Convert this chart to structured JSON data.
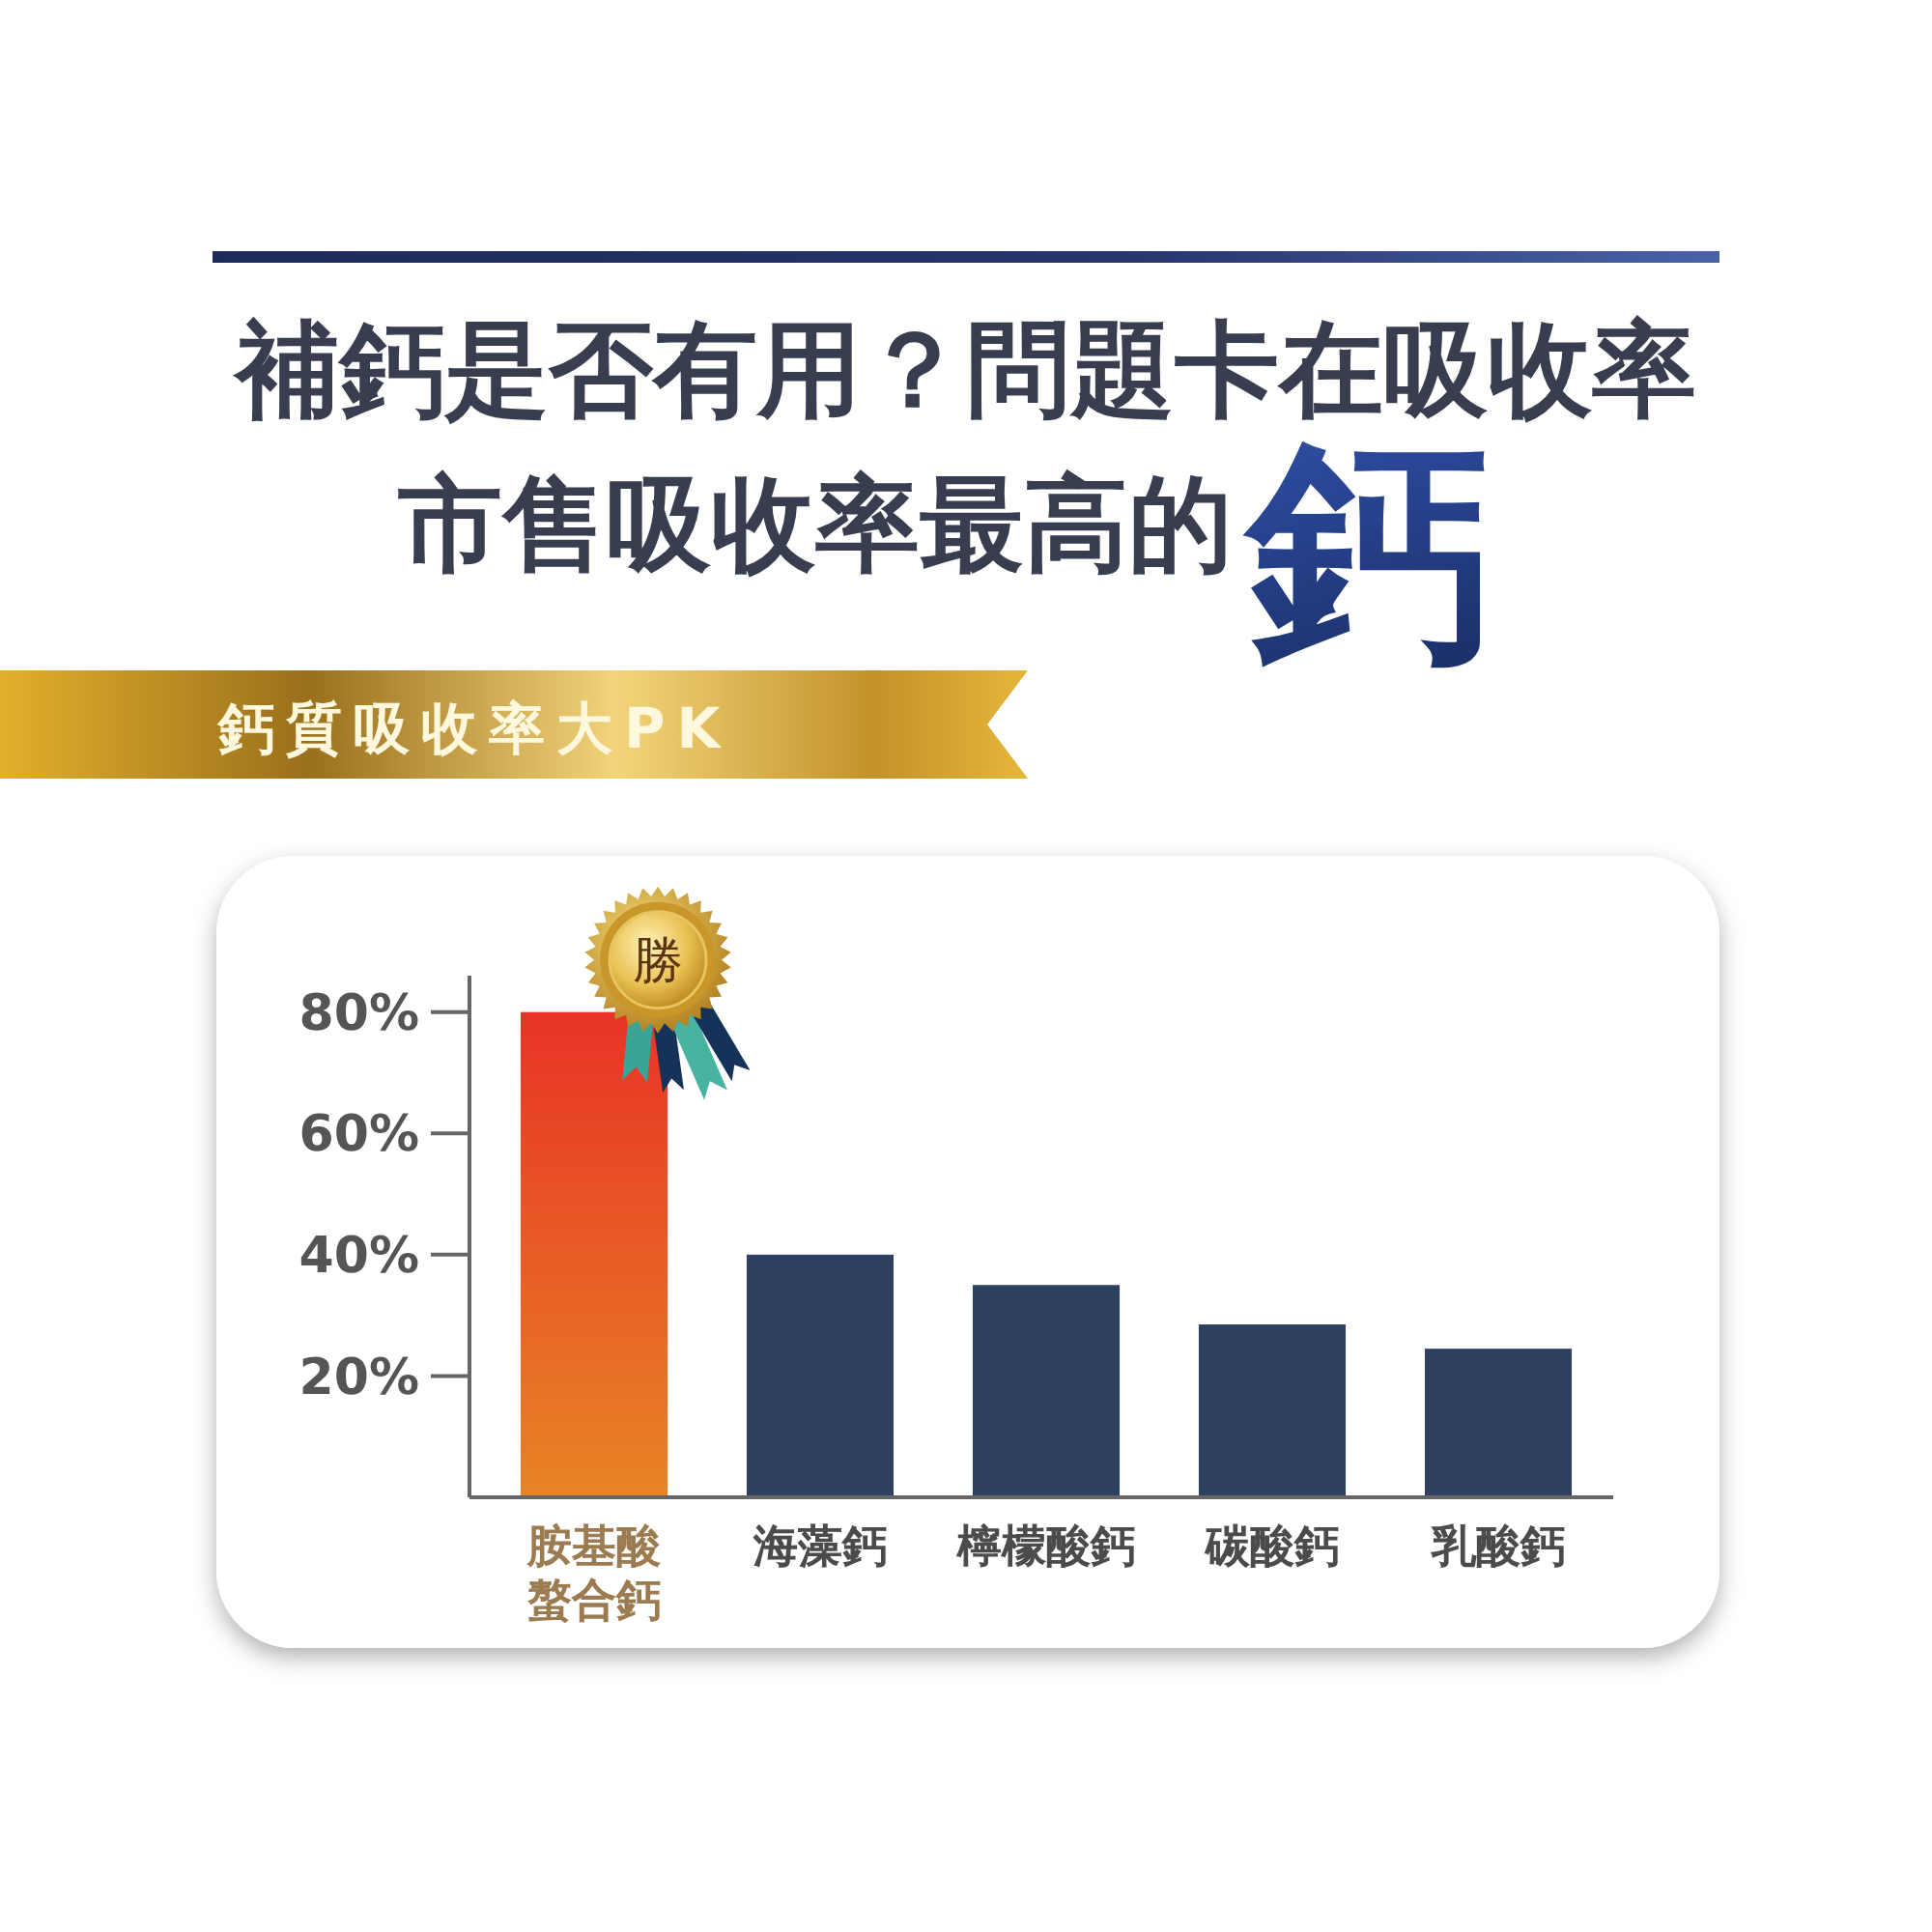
{
  "chart_data": {
    "type": "bar",
    "title": "補鈣是否有用？問題卡在吸收率",
    "subtitle": "市售吸收率最高的鈣",
    "annotations": [
      "鈣質吸收率大PK",
      {
        "text": "勝",
        "x": "胺基酸螯合鈣",
        "y": 80
      }
    ],
    "categories": [
      "胺基酸螯合鈣",
      "海藻鈣",
      "檸檬酸鈣",
      "碳酸鈣",
      "乳酸鈣"
    ],
    "values": [
      80,
      40,
      35,
      28.5,
      24.5
    ],
    "colors": [
      "#e85d26",
      "#2f4161",
      "#2f4161",
      "#2f4161",
      "#2f4161"
    ],
    "ylim": [
      0,
      86
    ],
    "yticks": [
      {
        "value": 20,
        "label": "20%"
      },
      {
        "value": 40,
        "label": "40%"
      },
      {
        "value": 60,
        "label": "60%"
      },
      {
        "value": 80,
        "label": "80%"
      }
    ]
  }
}
